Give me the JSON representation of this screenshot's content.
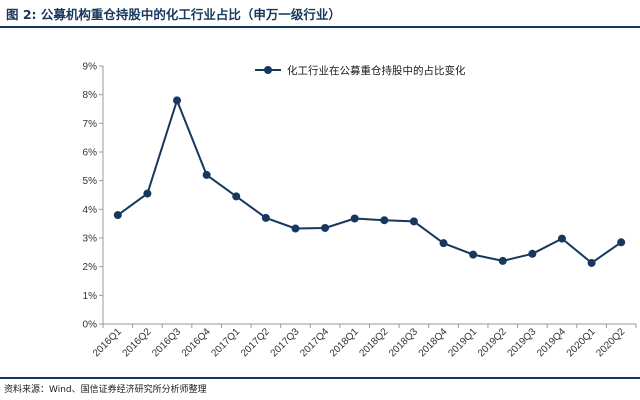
{
  "figure": {
    "title": "图 2: 公募机构重仓持股中的化工行业占比（申万一级行业）",
    "source": "资料来源：Wind、国信证券经济研究所分析师整理"
  },
  "colors": {
    "line": "#17375e",
    "header": "#17375e",
    "axis": "#999999"
  },
  "chart_data": {
    "type": "line",
    "categories": [
      "2016Q1",
      "2016Q2",
      "2016Q3",
      "2016Q4",
      "2017Q1",
      "2017Q2",
      "2017Q3",
      "2017Q4",
      "2018Q1",
      "2018Q2",
      "2018Q3",
      "2018Q4",
      "2019Q1",
      "2019Q2",
      "2019Q3",
      "2019Q4",
      "2020Q1",
      "2020Q2"
    ],
    "series": [
      {
        "name": "化工行业在公募重仓持股中的占比变化",
        "values": [
          3.8,
          4.55,
          7.8,
          5.2,
          4.45,
          3.7,
          3.33,
          3.35,
          3.68,
          3.62,
          3.58,
          2.82,
          2.42,
          2.2,
          2.45,
          2.98,
          2.13,
          2.85
        ]
      }
    ],
    "ylim": [
      0,
      9
    ],
    "yticks": [
      "0%",
      "1%",
      "2%",
      "3%",
      "4%",
      "5%",
      "6%",
      "7%",
      "8%",
      "9%"
    ],
    "legend_position": "top-right",
    "grid": false
  }
}
